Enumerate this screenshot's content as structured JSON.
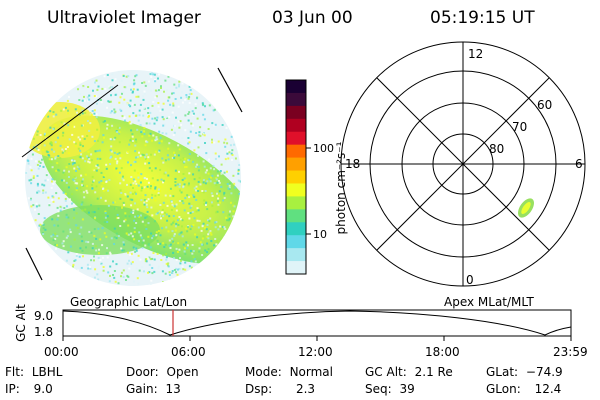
{
  "header": {
    "instrument": "Ultraviolet Imager",
    "date": "03 Jun 00",
    "time": "05:19:15 UT"
  },
  "colorbar": {
    "unit_label": "photon cm⁻²s⁻¹",
    "ticks": [
      "100",
      "10"
    ],
    "colors_top_to_bottom": [
      "#1a0033",
      "#3b0a3a",
      "#7a0020",
      "#b00020",
      "#e0102a",
      "#ff6a00",
      "#ffa000",
      "#ffd000",
      "#f0ff20",
      "#a8f040",
      "#60e080",
      "#30d0c0",
      "#60d8e8",
      "#a8e8f0",
      "#e0f4f8"
    ]
  },
  "polar_plot": {
    "clock_labels": [
      "12",
      "18",
      "6",
      "0"
    ],
    "lat_labels": [
      "60",
      "70",
      "80"
    ]
  },
  "timeline": {
    "ylabel": "GC Alt",
    "y_ticks": [
      "9.0",
      "1.8"
    ],
    "left_label": "Geographic Lat/Lon",
    "right_label": "Apex MLat/MLT",
    "x_ticks": [
      "00:00",
      "06:00",
      "12:00",
      "18:00",
      "23:59"
    ],
    "marker_color": "#cc3333"
  },
  "status": {
    "flt": {
      "label": "Flt:",
      "value": "LBHL"
    },
    "ip": {
      "label": "IP:",
      "value": "9.0"
    },
    "door": {
      "label": "Door:",
      "value": "Open"
    },
    "gain": {
      "label": "Gain:",
      "value": "13"
    },
    "mode": {
      "label": "Mode:",
      "value": "Normal"
    },
    "dsp": {
      "label": "Dsp:",
      "value": "2.3"
    },
    "gcalt": {
      "label": "GC Alt:",
      "value": "2.1 Re"
    },
    "seq": {
      "label": "Seq:",
      "value": "39"
    },
    "glat": {
      "label": "GLat:",
      "value": "−74.9"
    },
    "glon": {
      "label": "GLon:",
      "value": "12.4"
    }
  }
}
